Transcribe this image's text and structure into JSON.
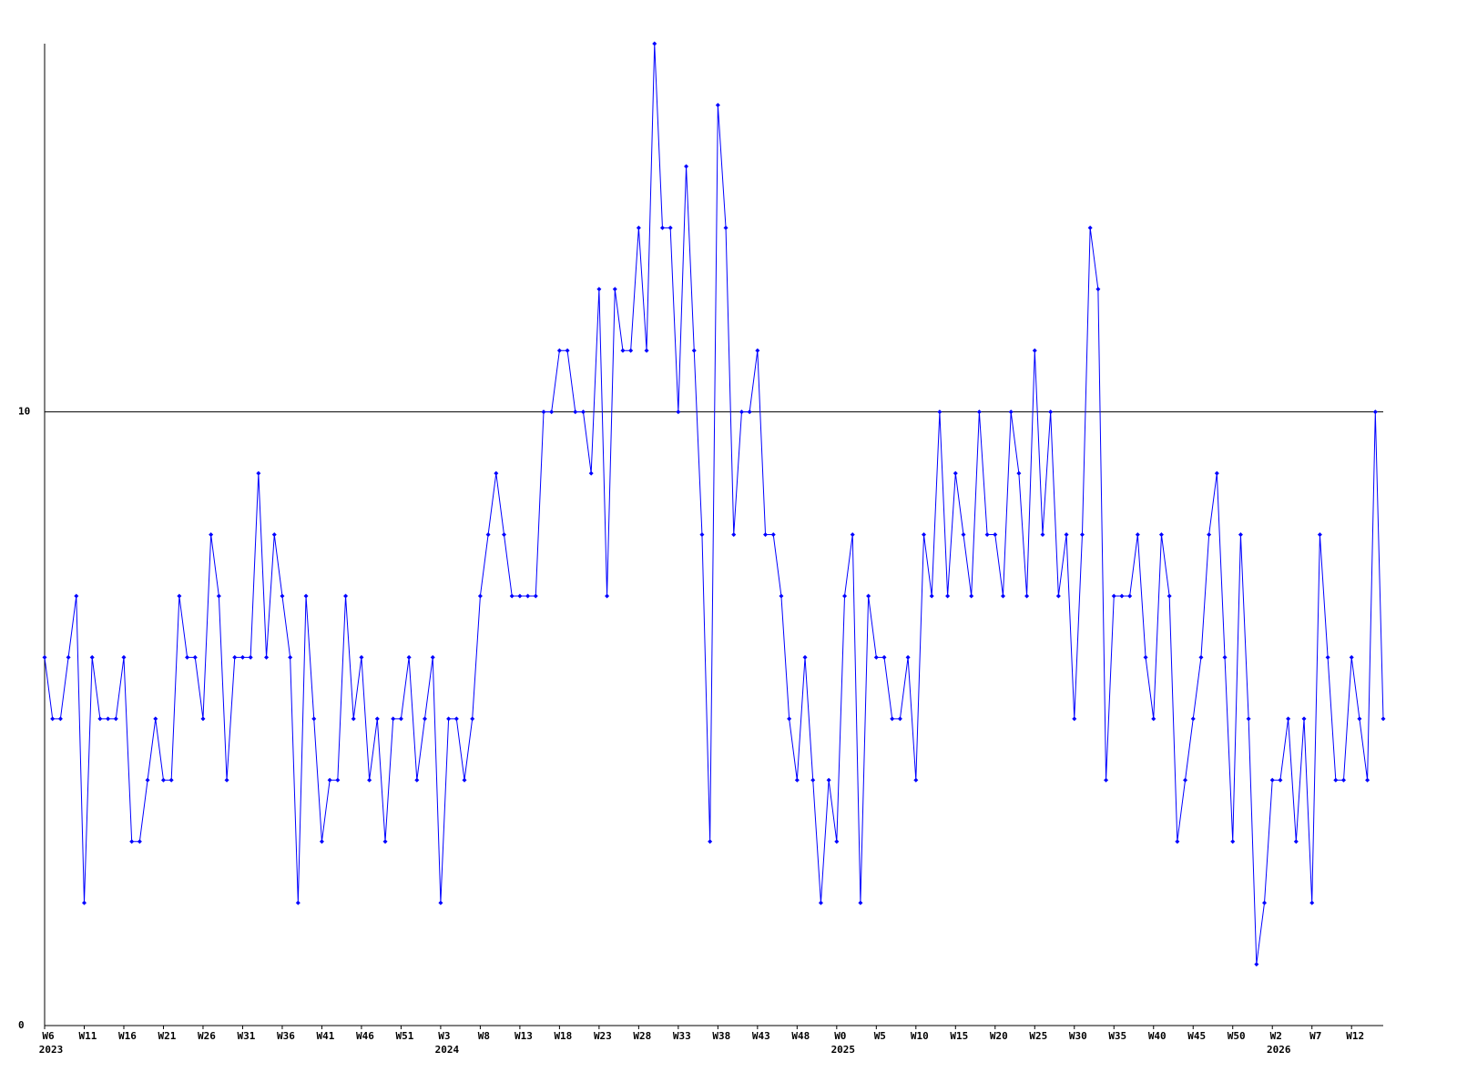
{
  "chart_data": {
    "type": "line",
    "categories": [
      "W6",
      null,
      null,
      null,
      null,
      "W11",
      null,
      null,
      null,
      null,
      "W16",
      null,
      null,
      null,
      null,
      "W21",
      null,
      null,
      null,
      null,
      "W26",
      null,
      null,
      null,
      null,
      "W31",
      null,
      null,
      null,
      null,
      "W36",
      null,
      null,
      null,
      null,
      "W41",
      null,
      null,
      null,
      null,
      "W46",
      null,
      null,
      null,
      null,
      "W51",
      null,
      null,
      null,
      null,
      "W3",
      null,
      null,
      null,
      null,
      "W8",
      null,
      null,
      null,
      null,
      "W13",
      null,
      null,
      null,
      null,
      "W18",
      null,
      null,
      null,
      null,
      "W23",
      null,
      null,
      null,
      null,
      "W28",
      null,
      null,
      null,
      null,
      "W33",
      null,
      null,
      null,
      null,
      "W38",
      null,
      null,
      null,
      null,
      "W43",
      null,
      null,
      null,
      null,
      "W48",
      null,
      null,
      null,
      null,
      "W0",
      null,
      null,
      null,
      null,
      "W5",
      null,
      null,
      null,
      null,
      "W10",
      null,
      null,
      null,
      null,
      "W15",
      null,
      null,
      null,
      null,
      "W20",
      null,
      null,
      null,
      null,
      "W25",
      null,
      null,
      null,
      null,
      "W30",
      null,
      null,
      null,
      null,
      "W35",
      null,
      null,
      null,
      null,
      "W40",
      null,
      null,
      null,
      null,
      "W45",
      null,
      null,
      null,
      null,
      "W50",
      null,
      null,
      null,
      null,
      "W2",
      null,
      null,
      null,
      null,
      "W7",
      null,
      null,
      null,
      null,
      "W12",
      null,
      null,
      null,
      null
    ],
    "year_labels": [
      "2023",
      null,
      null,
      null,
      null,
      null,
      null,
      null,
      null,
      null,
      null,
      null,
      null,
      null,
      null,
      null,
      null,
      null,
      null,
      null,
      null,
      null,
      null,
      null,
      null,
      null,
      null,
      null,
      null,
      null,
      null,
      null,
      null,
      null,
      null,
      null,
      null,
      null,
      null,
      null,
      null,
      null,
      null,
      null,
      null,
      null,
      null,
      null,
      null,
      null,
      "2024",
      null,
      null,
      null,
      null,
      null,
      null,
      null,
      null,
      null,
      null,
      null,
      null,
      null,
      null,
      null,
      null,
      null,
      null,
      null,
      null,
      null,
      null,
      null,
      null,
      null,
      null,
      null,
      null,
      null,
      null,
      null,
      null,
      null,
      null,
      null,
      null,
      null,
      null,
      null,
      null,
      null,
      null,
      null,
      null,
      null,
      null,
      null,
      null,
      null,
      "2025",
      null,
      null,
      null,
      null,
      null,
      null,
      null,
      null,
      null,
      null,
      null,
      null,
      null,
      null,
      null,
      null,
      null,
      null,
      null,
      null,
      null,
      null,
      null,
      null,
      null,
      null,
      null,
      null,
      null,
      null,
      null,
      null,
      null,
      null,
      null,
      null,
      null,
      null,
      null,
      null,
      null,
      null,
      null,
      null,
      null,
      null,
      null,
      null,
      null,
      null,
      null,
      null,
      null,
      null,
      "2026",
      null,
      null,
      null,
      null,
      null,
      null,
      null,
      null,
      null,
      null,
      null,
      null,
      null,
      null
    ],
    "series": [
      {
        "color": "#0000ff",
        "values": [
          6,
          5,
          5,
          6,
          7,
          2,
          6,
          5,
          5,
          5,
          6,
          3,
          3,
          4,
          5,
          4,
          4,
          7,
          6,
          6,
          5,
          8,
          7,
          4,
          6,
          6,
          6,
          9,
          6,
          8,
          7,
          6,
          2,
          7,
          5,
          3,
          4,
          4,
          7,
          5,
          6,
          4,
          5,
          3,
          5,
          5,
          6,
          4,
          5,
          6,
          2,
          5,
          5,
          4,
          5,
          7,
          8,
          9,
          8,
          7,
          7,
          7,
          7,
          10,
          10,
          11,
          11,
          10,
          10,
          9,
          12,
          7,
          12,
          11,
          11,
          13,
          11,
          16,
          13,
          13,
          10,
          14,
          11,
          8,
          3,
          15,
          13,
          8,
          10,
          10,
          11,
          8,
          8,
          7,
          5,
          4,
          6,
          4,
          2,
          4,
          3,
          7,
          8,
          2,
          7,
          6,
          6,
          5,
          5,
          6,
          4,
          8,
          7,
          10,
          7,
          9,
          8,
          7,
          10,
          8,
          8,
          7,
          10,
          9,
          7,
          11,
          8,
          10,
          7,
          8,
          5,
          8,
          13,
          12,
          4,
          7,
          7,
          7,
          8,
          6,
          5,
          8,
          7,
          3,
          4,
          5,
          6,
          8,
          9,
          6,
          3,
          8,
          5,
          1,
          2,
          4,
          4,
          5,
          3,
          5,
          2,
          8,
          6,
          4,
          4,
          6,
          5,
          4,
          10,
          5
        ]
      }
    ],
    "ylim": [
      0,
      16
    ],
    "yticks": [
      0,
      10
    ],
    "grid": true
  }
}
